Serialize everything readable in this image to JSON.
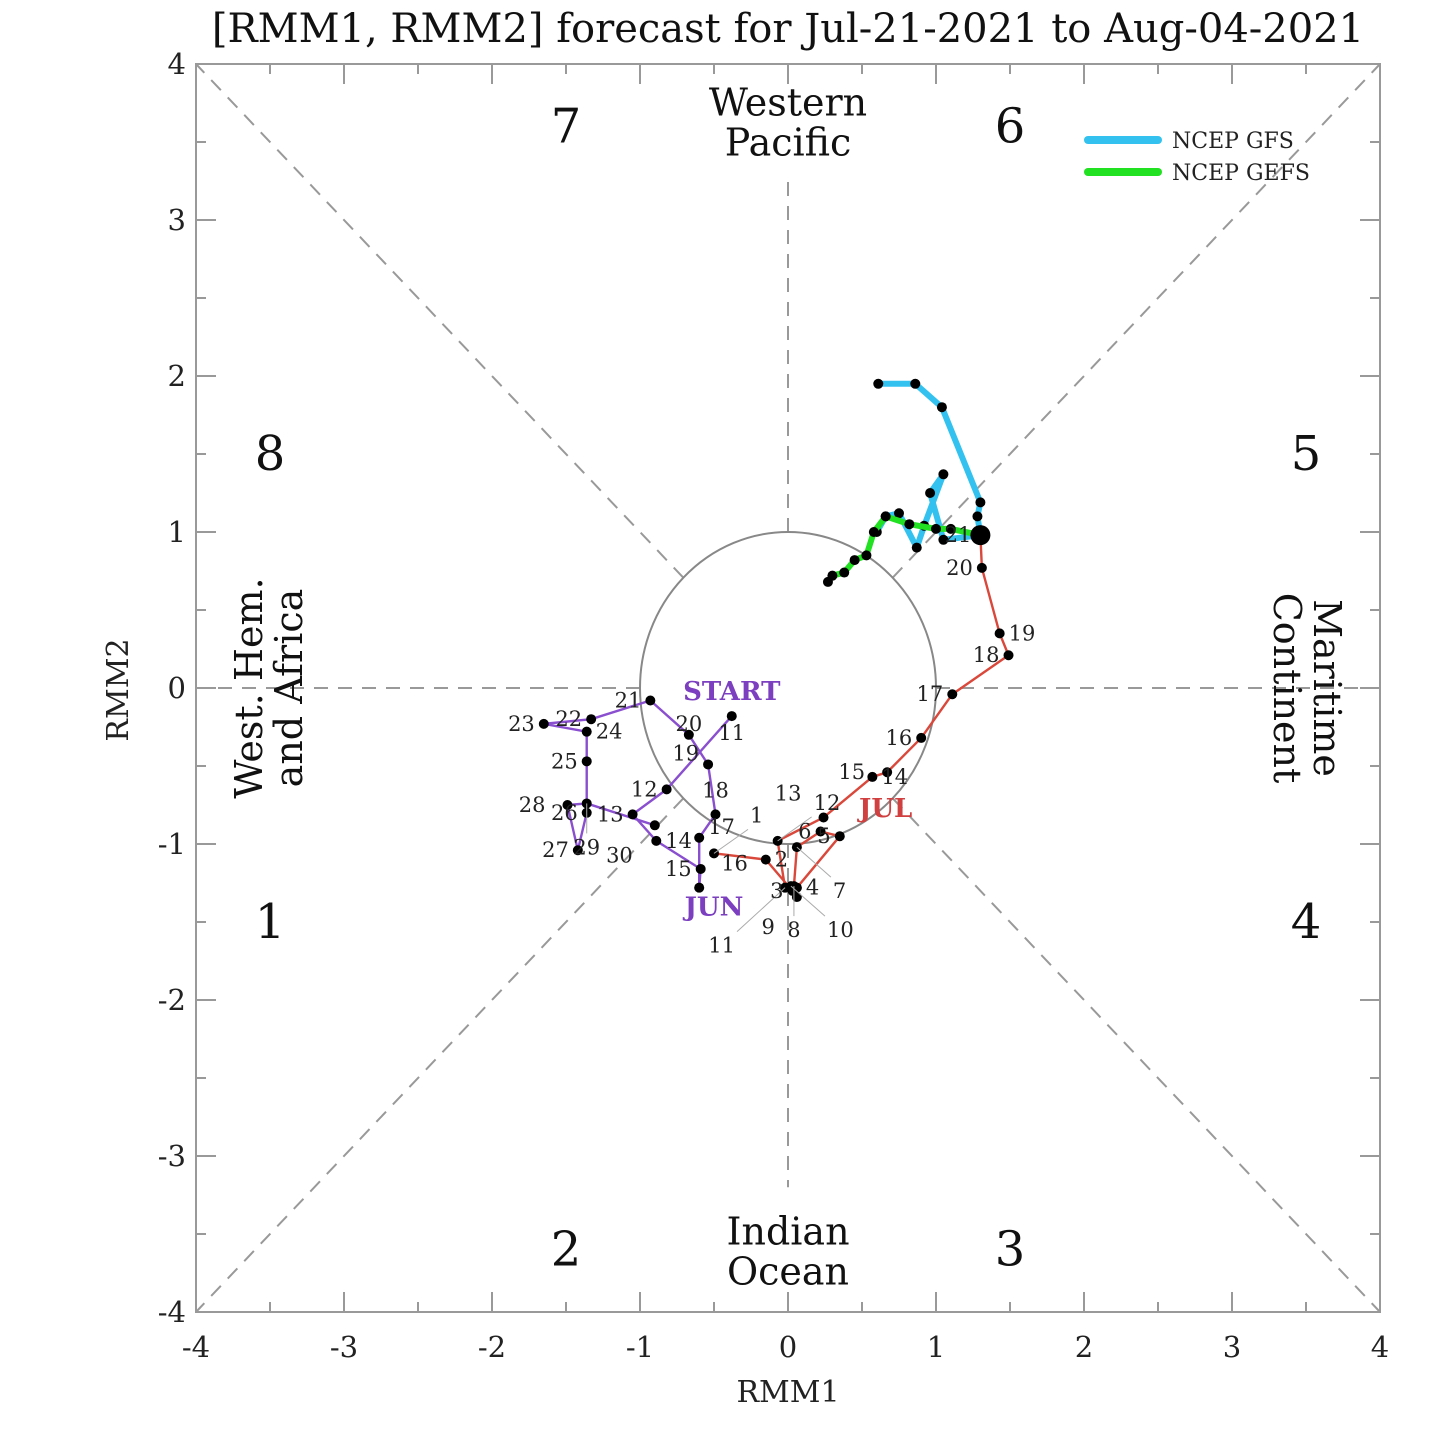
{
  "chart_data": {
    "type": "line",
    "title": "[RMM1, RMM2] forecast for Jul-21-2021 to Aug-04-2021",
    "xlabel": "RMM1",
    "ylabel": "RMM2",
    "xlim": [
      -4,
      4
    ],
    "ylim": [
      -4,
      4
    ],
    "xticks": [
      "-4",
      "-3",
      "-2",
      "-1",
      "0",
      "1",
      "2",
      "3",
      "4"
    ],
    "yticks": [
      "-4",
      "-3",
      "-2",
      "-1",
      "0",
      "1",
      "2",
      "3",
      "4"
    ],
    "grid": false,
    "legend_position": "top-right",
    "phases": [
      {
        "label": "1",
        "x": -3.5,
        "y": -1.5
      },
      {
        "label": "2",
        "x": -1.5,
        "y": -3.6
      },
      {
        "label": "3",
        "x": 1.5,
        "y": -3.6
      },
      {
        "label": "4",
        "x": 3.5,
        "y": -1.5
      },
      {
        "label": "5",
        "x": 3.5,
        "y": 1.5
      },
      {
        "label": "6",
        "x": 1.5,
        "y": 3.6
      },
      {
        "label": "7",
        "x": -1.5,
        "y": 3.6
      },
      {
        "label": "8",
        "x": -3.5,
        "y": 1.5
      }
    ],
    "regions": {
      "top": [
        "Western",
        "Pacific"
      ],
      "bottom": [
        "Indian",
        "Ocean"
      ],
      "left": [
        "West. Hem.",
        "and Africa"
      ],
      "right": [
        "Maritime",
        "Continent"
      ]
    },
    "markers": [
      {
        "text": "START",
        "x": -0.38,
        "y": -0.02,
        "color": "#7b3fbf"
      },
      {
        "text": "JUN",
        "x": -0.5,
        "y": -1.4,
        "color": "#7b3fbf"
      },
      {
        "text": "JUL",
        "x": 0.66,
        "y": -0.77,
        "color": "#d04040"
      }
    ],
    "series": [
      {
        "name": "June (observed)",
        "color": "#8a4fcf",
        "points": [
          {
            "day": "11",
            "x": -0.38,
            "y": -0.18
          },
          {
            "day": "12",
            "x": -0.82,
            "y": -0.65
          },
          {
            "day": "13",
            "x": -1.05,
            "y": -0.81
          },
          {
            "day": "14",
            "x": -0.89,
            "y": -0.98
          },
          {
            "day": "15",
            "x": -0.59,
            "y": -1.16
          },
          {
            "day": "16",
            "x": -0.6,
            "y": -1.28
          },
          {
            "day": "17",
            "x": -0.6,
            "y": -0.96
          },
          {
            "day": "18",
            "x": -0.49,
            "y": -0.81
          },
          {
            "day": "19",
            "x": -0.54,
            "y": -0.49
          },
          {
            "day": "20",
            "x": -0.67,
            "y": -0.3
          },
          {
            "day": "21",
            "x": -0.93,
            "y": -0.08
          },
          {
            "day": "22",
            "x": -1.33,
            "y": -0.2
          },
          {
            "day": "23",
            "x": -1.65,
            "y": -0.23
          },
          {
            "day": "24",
            "x": -1.36,
            "y": -0.28
          },
          {
            "day": "25",
            "x": -1.36,
            "y": -0.47
          },
          {
            "day": "26",
            "x": -1.36,
            "y": -0.8
          },
          {
            "day": "27",
            "x": -1.42,
            "y": -1.04
          },
          {
            "day": "28",
            "x": -1.49,
            "y": -0.75
          },
          {
            "day": "29",
            "x": -1.36,
            "y": -0.74
          },
          {
            "day": "30",
            "x": -0.9,
            "y": -0.88
          }
        ]
      },
      {
        "name": "July (observed)",
        "color": "#d9483b",
        "points": [
          {
            "day": "1",
            "x": -0.5,
            "y": -1.06
          },
          {
            "day": "2",
            "x": -0.15,
            "y": -1.1
          },
          {
            "day": "3",
            "x": 0.03,
            "y": -1.3
          },
          {
            "day": "4",
            "x": 0.06,
            "y": -1.28
          },
          {
            "day": "5",
            "x": 0.35,
            "y": -0.95
          },
          {
            "day": "6",
            "x": 0.22,
            "y": -0.92
          },
          {
            "day": "7",
            "x": 0.06,
            "y": -1.02
          },
          {
            "day": "8",
            "x": 0.04,
            "y": -1.27
          },
          {
            "day": "9",
            "x": 0.06,
            "y": -1.34
          },
          {
            "day": "10",
            "x": 0.02,
            "y": -1.27
          },
          {
            "day": "11",
            "x": -0.02,
            "y": -1.28
          },
          {
            "day": "12",
            "x": -0.07,
            "y": -0.98
          },
          {
            "day": "13",
            "x": 0.24,
            "y": -0.83
          },
          {
            "day": "14",
            "x": 0.57,
            "y": -0.57
          },
          {
            "day": "15",
            "x": 0.67,
            "y": -0.54
          },
          {
            "day": "16",
            "x": 0.9,
            "y": -0.32
          },
          {
            "day": "17",
            "x": 1.11,
            "y": -0.04
          },
          {
            "day": "18",
            "x": 1.49,
            "y": 0.21
          },
          {
            "day": "19",
            "x": 1.43,
            "y": 0.35
          },
          {
            "day": "20",
            "x": 1.31,
            "y": 0.77
          },
          {
            "day": "21",
            "x": 1.3,
            "y": 0.98
          }
        ]
      },
      {
        "name": "NCEP GFS",
        "color": "#33c2f0",
        "points": [
          {
            "x": 1.3,
            "y": 0.98
          },
          {
            "x": 1.28,
            "y": 1.1
          },
          {
            "x": 1.3,
            "y": 1.19
          },
          {
            "x": 1.04,
            "y": 1.8
          },
          {
            "x": 0.86,
            "y": 1.95
          },
          {
            "x": 0.61,
            "y": 1.95
          }
        ],
        "branch": [
          {
            "x": 1.3,
            "y": 0.98
          },
          {
            "x": 1.05,
            "y": 0.95
          },
          {
            "x": 0.96,
            "y": 1.25
          },
          {
            "x": 1.05,
            "y": 1.37
          },
          {
            "x": 0.92,
            "y": 1.04
          },
          {
            "x": 0.87,
            "y": 0.9
          },
          {
            "x": 0.75,
            "y": 1.12
          },
          {
            "x": 0.66,
            "y": 1.1
          },
          {
            "x": 0.6,
            "y": 1.0
          }
        ]
      },
      {
        "name": "NCEP GEFS",
        "color": "#22e022",
        "points": [
          {
            "x": 1.3,
            "y": 0.98
          },
          {
            "x": 1.1,
            "y": 1.02
          },
          {
            "x": 1.0,
            "y": 1.02
          },
          {
            "x": 0.82,
            "y": 1.05
          },
          {
            "x": 0.66,
            "y": 1.1
          },
          {
            "x": 0.58,
            "y": 1.0
          },
          {
            "x": 0.53,
            "y": 0.85
          },
          {
            "x": 0.45,
            "y": 0.82
          },
          {
            "x": 0.38,
            "y": 0.74
          },
          {
            "x": 0.3,
            "y": 0.72
          },
          {
            "x": 0.27,
            "y": 0.68
          }
        ]
      }
    ],
    "legend": [
      {
        "label": "NCEP GFS",
        "color": "#33c2f0"
      },
      {
        "label": "NCEP GEFS",
        "color": "#22e022"
      }
    ]
  }
}
